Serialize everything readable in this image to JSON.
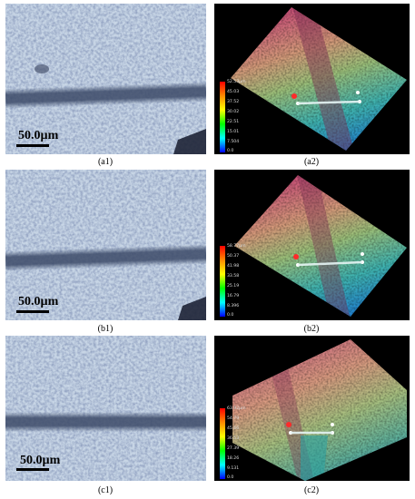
{
  "panels": [
    {
      "row": "a",
      "left": {
        "caption": "(a1)",
        "scale_label": "50.0µm"
      },
      "right": {
        "caption": "(a2)",
        "colorbar_ticks": [
          "52.53µm",
          "45.03",
          "37.52",
          "30.02",
          "22.51",
          "15.01",
          "7.504",
          "0.0"
        ]
      }
    },
    {
      "row": "b",
      "left": {
        "caption": "(b1)",
        "scale_label": "50.0µm"
      },
      "right": {
        "caption": "(b2)",
        "colorbar_ticks": [
          "58.77µm",
          "50.37",
          "41.98",
          "33.58",
          "25.19",
          "16.79",
          "8.396",
          "0.0"
        ]
      }
    },
    {
      "row": "c",
      "left": {
        "caption": "(c1)",
        "scale_label": "50.0µm"
      },
      "right": {
        "caption": "(c2)",
        "colorbar_ticks": [
          "63.92µm",
          "54.79",
          "45.66",
          "36.53",
          "27.39",
          "18.26",
          "9.131",
          "0.0"
        ]
      }
    }
  ],
  "colors": {
    "micro_background": "#bfcfe0",
    "track_band": "#3c4a68",
    "colorbar_top": "#ff0000",
    "colorbar_bottom": "#0000ff",
    "marker_red": "#ff2a2a",
    "marker_white": "#ffffff"
  }
}
